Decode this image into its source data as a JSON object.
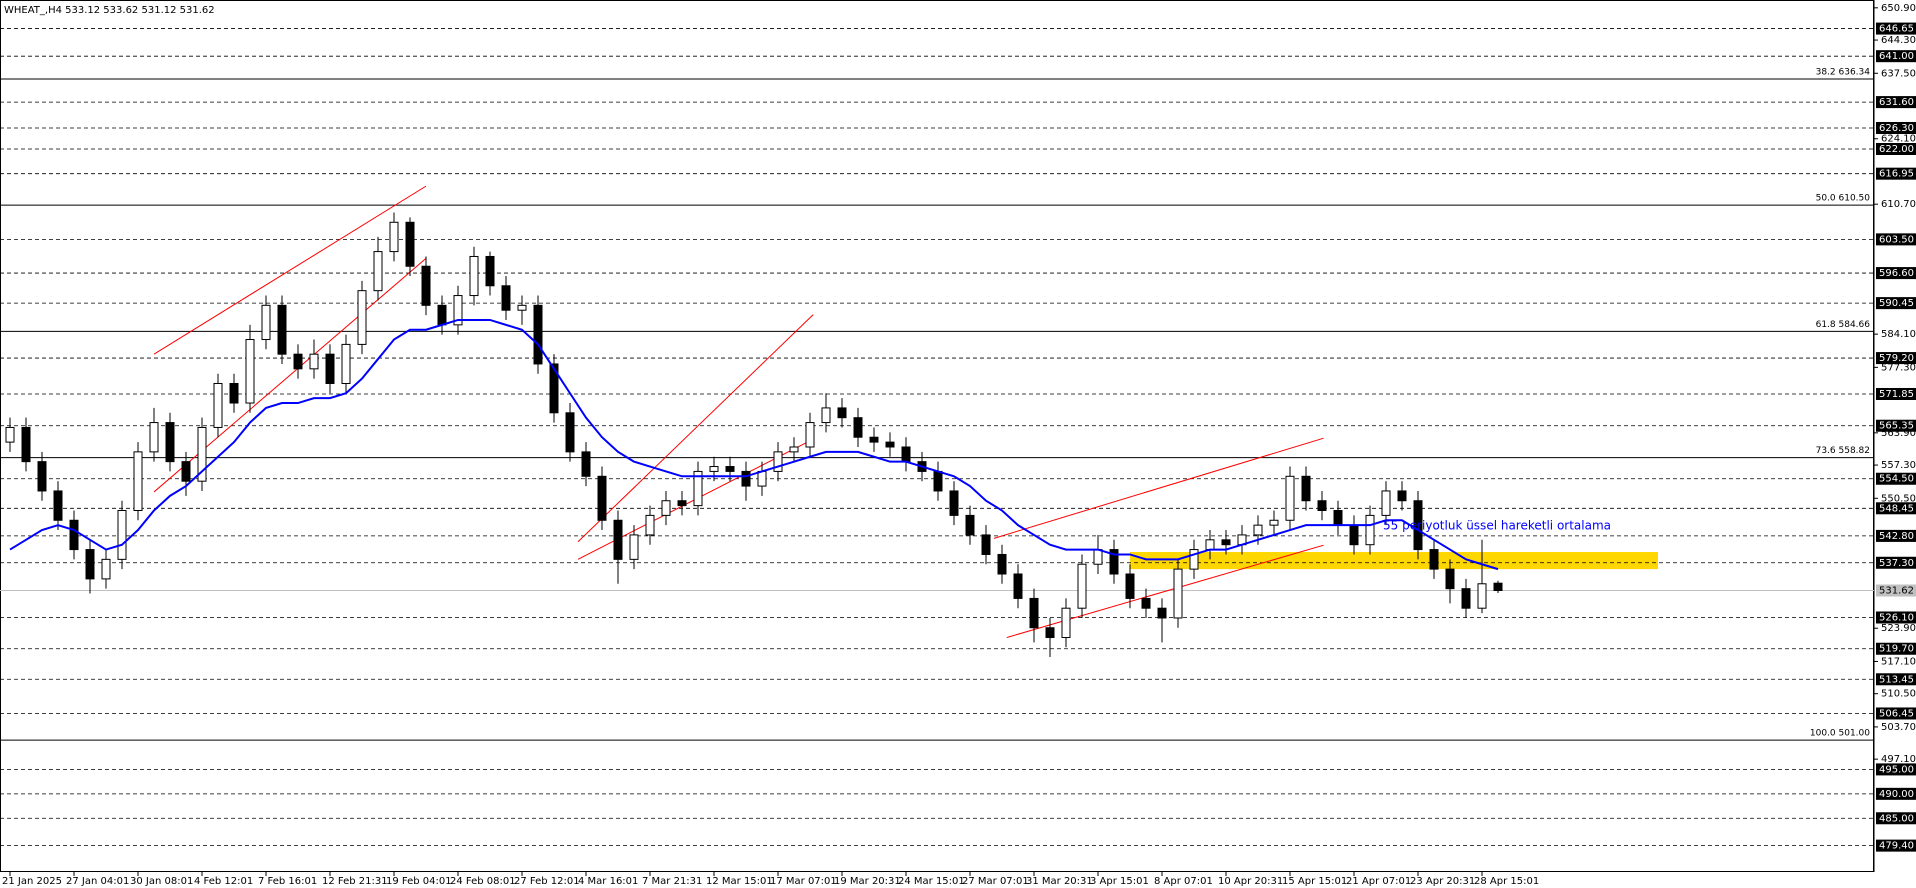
{
  "chart_data": {
    "type": "candlestick",
    "title": "WHEAT_,H4  533.12 533.62 531.12 531.62",
    "categories": [
      "21 Jan 2025",
      null,
      null,
      null,
      "27 Jan 04:01",
      null,
      null,
      null,
      "30 Jan 08:01",
      null,
      null,
      null,
      "4 Feb 12:01",
      null,
      null,
      null,
      "7 Feb 16:01",
      null,
      null,
      null,
      "12 Feb 21:31",
      null,
      null,
      null,
      "19 Feb 04:01",
      null,
      null,
      null,
      "24 Feb 08:01",
      null,
      null,
      null,
      "27 Feb 12:01",
      null,
      null,
      null,
      "4 Mar 16:01",
      null,
      null,
      null,
      "7 Mar 21:31",
      null,
      null,
      null,
      "12 Mar 15:01",
      null,
      null,
      null,
      "17 Mar 07:01",
      null,
      null,
      null,
      "19 Mar 20:31",
      null,
      null,
      null,
      "24 Mar 15:01",
      null,
      null,
      null,
      "27 Mar 07:01",
      null,
      null,
      null,
      "31 Mar 20:31",
      null,
      null,
      null,
      "3 Apr 15:01",
      null,
      null,
      null,
      "8 Apr 07:01",
      null,
      null,
      null,
      "10 Apr 20:31",
      null,
      null,
      null,
      "15 Apr 15:01",
      null,
      null,
      null,
      "21 Apr 07:01",
      null,
      null,
      null,
      "23 Apr 20:31",
      null,
      null,
      null,
      "28 Apr 15:01",
      null
    ],
    "open": [
      562,
      565,
      558,
      552,
      546,
      540,
      534,
      538,
      548,
      560,
      566,
      558,
      554,
      565,
      574,
      570,
      583,
      590,
      580,
      577,
      580,
      574,
      582,
      593,
      601,
      607,
      598,
      590,
      586,
      592,
      600,
      594,
      589,
      590,
      578,
      568,
      560,
      555,
      546,
      538,
      543,
      547,
      550,
      549,
      556,
      557,
      556,
      553,
      556,
      560,
      561,
      566,
      569,
      567,
      563,
      562,
      561,
      558,
      556,
      552,
      547,
      543,
      539,
      535,
      530,
      524,
      522,
      528,
      537,
      540,
      535,
      530,
      528,
      526,
      536,
      540,
      542,
      541,
      543,
      545,
      546,
      555,
      550,
      548,
      545,
      541,
      547,
      552,
      550,
      540,
      536,
      532,
      528,
      533.12
    ],
    "high": [
      567,
      567,
      560,
      554,
      548,
      542,
      540,
      550,
      562,
      569,
      568,
      560,
      567,
      576,
      576,
      586,
      592,
      592,
      582,
      583,
      582,
      584,
      595,
      604,
      609,
      608,
      600,
      592,
      594,
      602,
      601,
      596,
      592,
      592,
      580,
      570,
      562,
      557,
      548,
      545,
      549,
      552,
      552,
      558,
      559,
      559,
      558,
      558,
      562,
      563,
      568,
      572,
      571,
      569,
      565,
      564,
      563,
      560,
      558,
      554,
      549,
      545,
      541,
      537,
      532,
      526,
      530,
      539,
      543,
      542,
      537,
      532,
      530,
      538,
      542,
      544,
      544,
      545,
      547,
      548,
      557,
      557,
      552,
      550,
      547,
      549,
      554,
      554,
      552,
      542,
      538,
      534,
      542,
      533.62
    ],
    "low": [
      560,
      556,
      550,
      544,
      538,
      531,
      532,
      536,
      546,
      558,
      556,
      551,
      552,
      563,
      568,
      568,
      581,
      578,
      575,
      575,
      572,
      572,
      580,
      591,
      599,
      596,
      588,
      584,
      584,
      590,
      592,
      587,
      586,
      576,
      566,
      558,
      553,
      544,
      533,
      536,
      541,
      545,
      547,
      547,
      554,
      554,
      550,
      551,
      554,
      558,
      559,
      564,
      565,
      561,
      560,
      559,
      556,
      554,
      550,
      545,
      541,
      537,
      533,
      528,
      521,
      518,
      520,
      526,
      535,
      533,
      528,
      526,
      521,
      524,
      534,
      538,
      539,
      539,
      541,
      543,
      544,
      548,
      546,
      543,
      539,
      539,
      545,
      548,
      538,
      534,
      529,
      526,
      527,
      531.12
    ],
    "close": [
      565,
      558,
      552,
      546,
      540,
      534,
      538,
      548,
      560,
      566,
      558,
      554,
      565,
      574,
      570,
      583,
      590,
      580,
      577,
      580,
      574,
      582,
      593,
      601,
      607,
      598,
      590,
      586,
      592,
      600,
      594,
      589,
      590,
      578,
      568,
      560,
      555,
      546,
      538,
      543,
      547,
      550,
      549,
      556,
      557,
      556,
      553,
      556,
      560,
      561,
      566,
      569,
      567,
      563,
      562,
      561,
      558,
      556,
      552,
      547,
      543,
      539,
      535,
      530,
      524,
      522,
      528,
      537,
      540,
      535,
      530,
      528,
      526,
      536,
      540,
      542,
      541,
      543,
      545,
      546,
      555,
      550,
      548,
      545,
      541,
      547,
      552,
      550,
      540,
      536,
      532,
      528,
      533,
      531.62
    ],
    "ema": {
      "color": "#0000ff",
      "values": [
        540,
        542,
        544,
        545,
        544,
        542,
        540,
        541,
        544,
        548,
        551,
        553,
        556,
        559,
        562,
        566,
        569,
        570,
        570,
        571,
        571,
        572,
        575,
        579,
        583,
        585,
        585,
        586,
        587,
        587,
        587,
        586,
        585,
        582,
        577,
        572,
        567,
        563,
        560,
        558,
        557,
        556,
        555,
        555,
        555,
        555,
        555,
        556,
        557,
        558,
        559,
        560,
        560,
        560,
        559,
        558,
        558,
        557,
        556,
        555,
        553,
        550,
        548,
        545,
        543,
        541,
        540,
        540,
        540,
        539,
        539,
        538,
        538,
        538,
        539,
        540,
        540,
        541,
        542,
        543,
        544,
        545,
        545,
        545,
        545,
        545,
        546,
        546,
        544,
        542,
        540,
        538,
        537,
        536
      ]
    },
    "annotations": [
      {
        "text": "55 periyotluk üssel hareketli ortalama",
        "color": "#0000ff"
      }
    ],
    "trendlines": [
      {
        "x": [
          9,
          26
        ],
        "y": [
          580,
          614.4
        ]
      },
      {
        "x": [
          9,
          26
        ],
        "y": [
          551.8,
          599.6
        ]
      },
      {
        "x": [
          35.5,
          50.2
        ],
        "y": [
          541.6,
          588.1
        ]
      },
      {
        "x": [
          35.5,
          50.2
        ],
        "y": [
          538,
          562.6
        ]
      },
      {
        "x": [
          61.5,
          82.1
        ],
        "y": [
          542.3,
          562.8
        ]
      },
      {
        "x": [
          62.3,
          82.1
        ],
        "y": [
          522,
          540.9
        ]
      }
    ],
    "trendline_color": "#ff0000",
    "zone": {
      "x": [
        70,
        103
      ],
      "y": [
        536,
        539.5
      ],
      "color": "#ffd700"
    },
    "levels": [
      {
        "value": 646.65,
        "label": "646.65"
      },
      {
        "value": 641.0,
        "label": "641.00"
      },
      {
        "value": 631.6,
        "label": "631.60"
      },
      {
        "value": 626.3,
        "label": "626.30"
      },
      {
        "value": 622.0,
        "label": "622.00"
      },
      {
        "value": 616.95,
        "label": "616.95"
      },
      {
        "value": 603.5,
        "label": "603.50"
      },
      {
        "value": 596.6,
        "label": "596.60"
      },
      {
        "value": 590.45,
        "label": "590.45"
      },
      {
        "value": 579.2,
        "label": "579.20"
      },
      {
        "value": 571.85,
        "label": "571.85"
      },
      {
        "value": 565.35,
        "label": "565.35"
      },
      {
        "value": 554.5,
        "label": "554.50"
      },
      {
        "value": 548.45,
        "label": "548.45"
      },
      {
        "value": 542.8,
        "label": "542.80"
      },
      {
        "value": 537.3,
        "label": "537.30"
      },
      {
        "value": 526.1,
        "label": "526.10"
      },
      {
        "value": 519.7,
        "label": "519.70"
      },
      {
        "value": 513.45,
        "label": "513.45"
      },
      {
        "value": 506.45,
        "label": "506.45"
      },
      {
        "value": 495.0,
        "label": "495.00"
      },
      {
        "value": 490.0,
        "label": "490.00"
      },
      {
        "value": 485.0,
        "label": "485.00"
      },
      {
        "value": 479.4,
        "label": "479.40"
      }
    ],
    "fib_levels": [
      {
        "value": 636.34,
        "label": "38.2 636.34"
      },
      {
        "value": 610.5,
        "label": "50.0 610.50"
      },
      {
        "value": 584.66,
        "label": "61.8 584.66"
      },
      {
        "value": 558.82,
        "label": "73.6 558.82"
      },
      {
        "value": 501.0,
        "label": "100.0 501.00"
      }
    ],
    "price_line": {
      "value": 531.62,
      "label": "531.62"
    },
    "ylim": [
      474,
      652.5
    ],
    "yticks": [
      {
        "value": 650.9,
        "label": "650.90"
      },
      {
        "value": 644.3,
        "label": "644.30"
      },
      {
        "value": 637.5,
        "label": "637.50"
      },
      {
        "value": 624.1,
        "label": "624.10"
      },
      {
        "value": 610.7,
        "label": "610.70"
      },
      {
        "value": 584.1,
        "label": "584.10"
      },
      {
        "value": 577.3,
        "label": "577.30"
      },
      {
        "value": 563.9,
        "label": "563.90"
      },
      {
        "value": 557.3,
        "label": "557.30"
      },
      {
        "value": 550.5,
        "label": "550.50"
      },
      {
        "value": 523.9,
        "label": "523.90"
      },
      {
        "value": 517.1,
        "label": "517.10"
      },
      {
        "value": 510.5,
        "label": "510.50"
      },
      {
        "value": 503.7,
        "label": "503.70"
      },
      {
        "value": 497.1,
        "label": "497.10"
      }
    ]
  }
}
